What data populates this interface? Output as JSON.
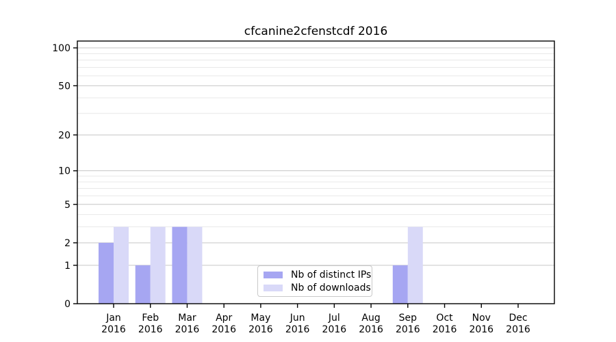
{
  "chart_data": {
    "type": "bar",
    "title": "cfcanine2cfenstcdf 2016",
    "scale": "log1p",
    "grid": true,
    "legend_position": "lower center",
    "categories": [
      "Jan 2016",
      "Feb 2016",
      "Mar 2016",
      "Apr 2016",
      "May 2016",
      "Jun 2016",
      "Jul 2016",
      "Aug 2016",
      "Sep 2016",
      "Oct 2016",
      "Nov 2016",
      "Dec 2016"
    ],
    "series": [
      {
        "name": "Nb of distinct IPs",
        "color": "#a6a6f2",
        "values": [
          2,
          1,
          3,
          0,
          0,
          0,
          0,
          0,
          1,
          0,
          0,
          0
        ]
      },
      {
        "name": "Nb of downloads",
        "color": "#d9d9f8",
        "values": [
          3,
          3,
          3,
          0,
          0,
          0,
          0,
          0,
          3,
          0,
          0,
          0
        ]
      }
    ],
    "y_ticks": [
      0,
      1,
      2,
      5,
      10,
      20,
      50,
      100
    ],
    "y_minor_gridlines": [
      3,
      4,
      6,
      7,
      8,
      9,
      30,
      40,
      60,
      70,
      80,
      90
    ],
    "ylim": [
      0,
      113
    ],
    "xlabel": "",
    "ylabel": ""
  },
  "colors": {
    "axis": "#000000",
    "major_grid": "#c6c6c6",
    "minor_grid": "#e8e8e8",
    "background": "#ffffff"
  }
}
